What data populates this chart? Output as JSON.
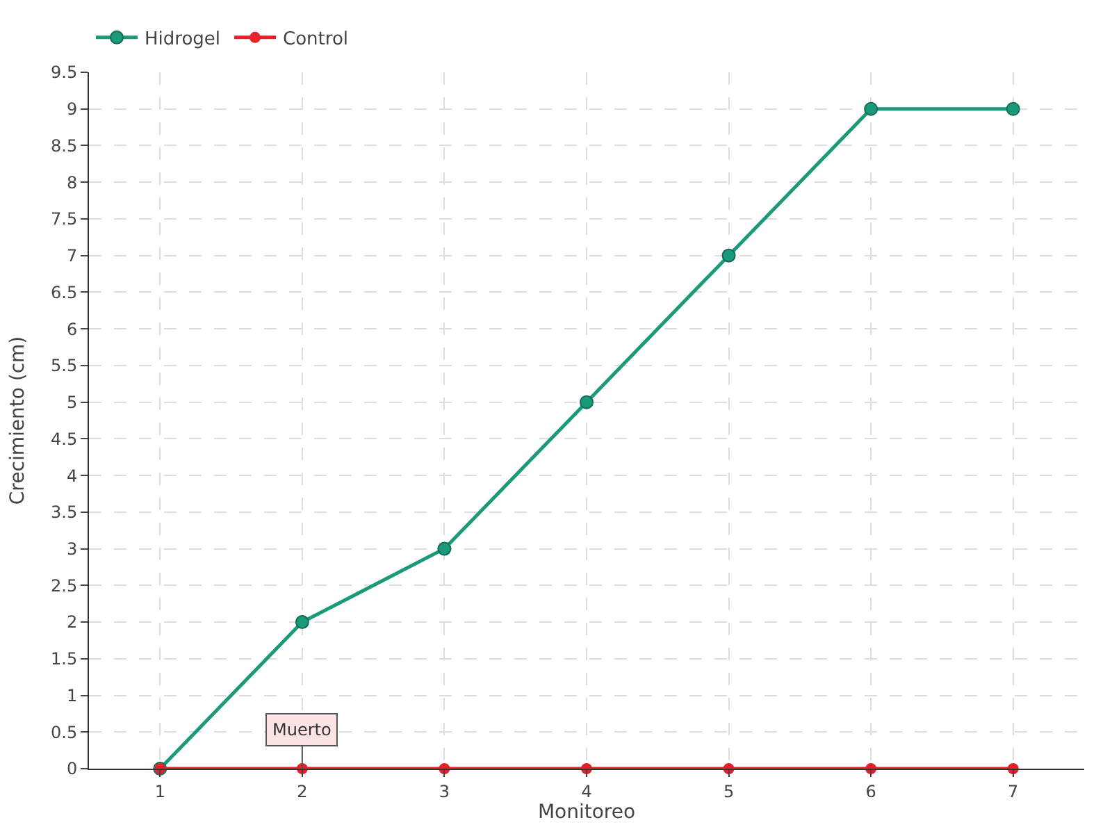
{
  "chart_data": {
    "type": "line",
    "xlabel": "Monitoreo",
    "ylabel": "Crecimiento (cm)",
    "categories": [
      "1",
      "2",
      "3",
      "4",
      "5",
      "6",
      "7"
    ],
    "series": [
      {
        "name": "Hidrogel",
        "color": "#1a9a7a",
        "values": [
          0,
          2,
          3,
          5,
          7,
          9,
          9
        ]
      },
      {
        "name": "Control",
        "color": "#e8202a",
        "values": [
          0,
          0,
          0,
          0,
          0,
          0,
          0
        ]
      }
    ],
    "ylim": [
      0,
      9.5
    ],
    "yticks": [
      0,
      0.5,
      1,
      1.5,
      2,
      2.5,
      3,
      3.5,
      4,
      4.5,
      5,
      5.5,
      6,
      6.5,
      7,
      7.5,
      8,
      8.5,
      9,
      9.5
    ],
    "annotations": [
      {
        "text": "Muerto",
        "x": "2",
        "y": 0
      }
    ],
    "grid": true,
    "legend": "top left",
    "marker": "circle",
    "line_style": "solid"
  }
}
